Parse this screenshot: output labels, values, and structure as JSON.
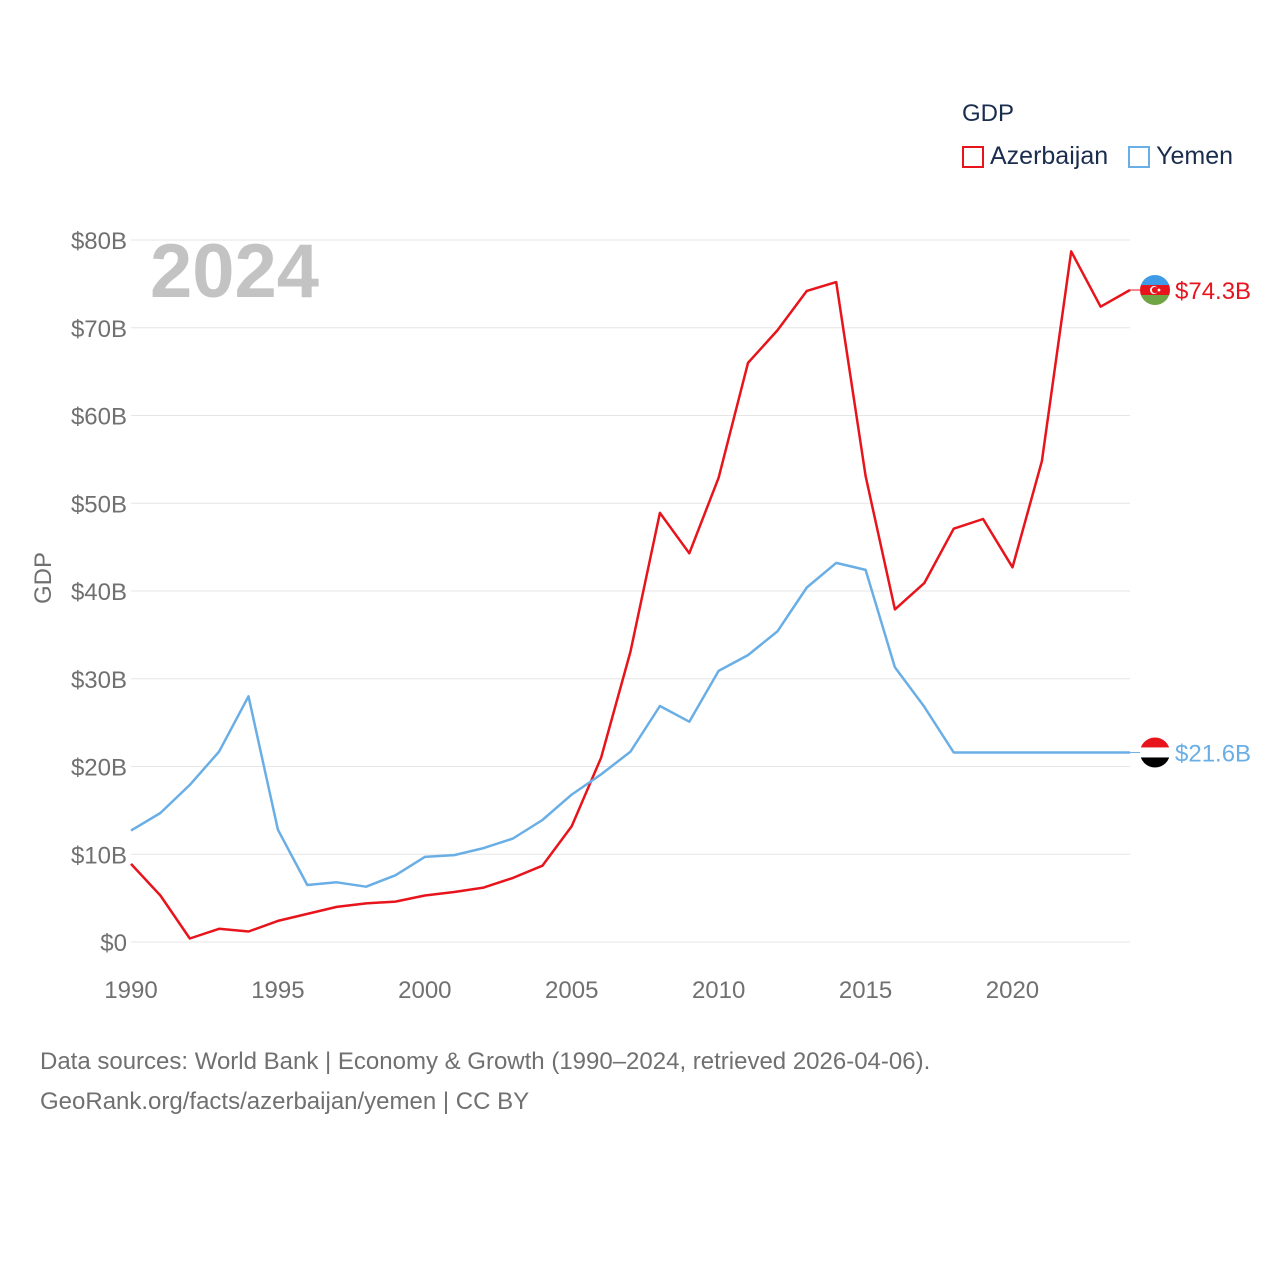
{
  "legend": {
    "title": "GDP",
    "items": [
      {
        "label": "Azerbaijan",
        "color": "#e8141c"
      },
      {
        "label": "Yemen",
        "color": "#6aaee6"
      }
    ]
  },
  "year_label": "2024",
  "source": {
    "line1": "Data sources: World Bank | Economy & Growth (1990–2024, retrieved 2026-04-06).",
    "line2": "GeoRank.org/facts/azerbaijan/yemen | CC BY"
  },
  "chart_data": {
    "type": "line",
    "title": "GDP",
    "xlabel": "",
    "ylabel": "GDP",
    "xlim": [
      1990,
      2024
    ],
    "ylim": [
      0,
      80
    ],
    "x_ticks": [
      "1990",
      "1995",
      "2000",
      "2005",
      "2010",
      "2015",
      "2020"
    ],
    "y_ticks": [
      "$0",
      "$10B",
      "$20B",
      "$30B",
      "$40B",
      "$50B",
      "$60B",
      "$70B",
      "$80B"
    ],
    "grid": true,
    "x": [
      1990,
      1991,
      1992,
      1993,
      1994,
      1995,
      1996,
      1997,
      1998,
      1999,
      2000,
      2001,
      2002,
      2003,
      2004,
      2005,
      2006,
      2007,
      2008,
      2009,
      2010,
      2011,
      2012,
      2013,
      2014,
      2015,
      2016,
      2017,
      2018,
      2019,
      2020,
      2021,
      2022,
      2023,
      2024
    ],
    "series": [
      {
        "name": "Azerbaijan",
        "color": "#e8141c",
        "end_label": "$74.3B",
        "values": [
          8.9,
          5.3,
          0.4,
          1.5,
          1.2,
          2.4,
          3.2,
          4.0,
          4.4,
          4.6,
          5.3,
          5.7,
          6.2,
          7.3,
          8.7,
          13.2,
          21.0,
          33.1,
          48.9,
          44.3,
          52.9,
          66.0,
          69.7,
          74.2,
          75.2,
          53.1,
          37.9,
          40.9,
          47.1,
          48.2,
          42.7,
          54.8,
          78.7,
          72.4,
          74.3
        ]
      },
      {
        "name": "Yemen",
        "color": "#6aaee6",
        "end_label": "$21.6B",
        "values": [
          12.7,
          14.7,
          17.9,
          21.7,
          28.0,
          12.8,
          6.5,
          6.8,
          6.3,
          7.6,
          9.7,
          9.9,
          10.7,
          11.8,
          13.9,
          16.8,
          19.1,
          21.7,
          26.9,
          25.1,
          30.9,
          32.7,
          35.4,
          40.4,
          43.2,
          42.4,
          31.3,
          26.8,
          21.6,
          21.6,
          21.6,
          21.6,
          21.6,
          21.6,
          21.6
        ]
      }
    ]
  }
}
